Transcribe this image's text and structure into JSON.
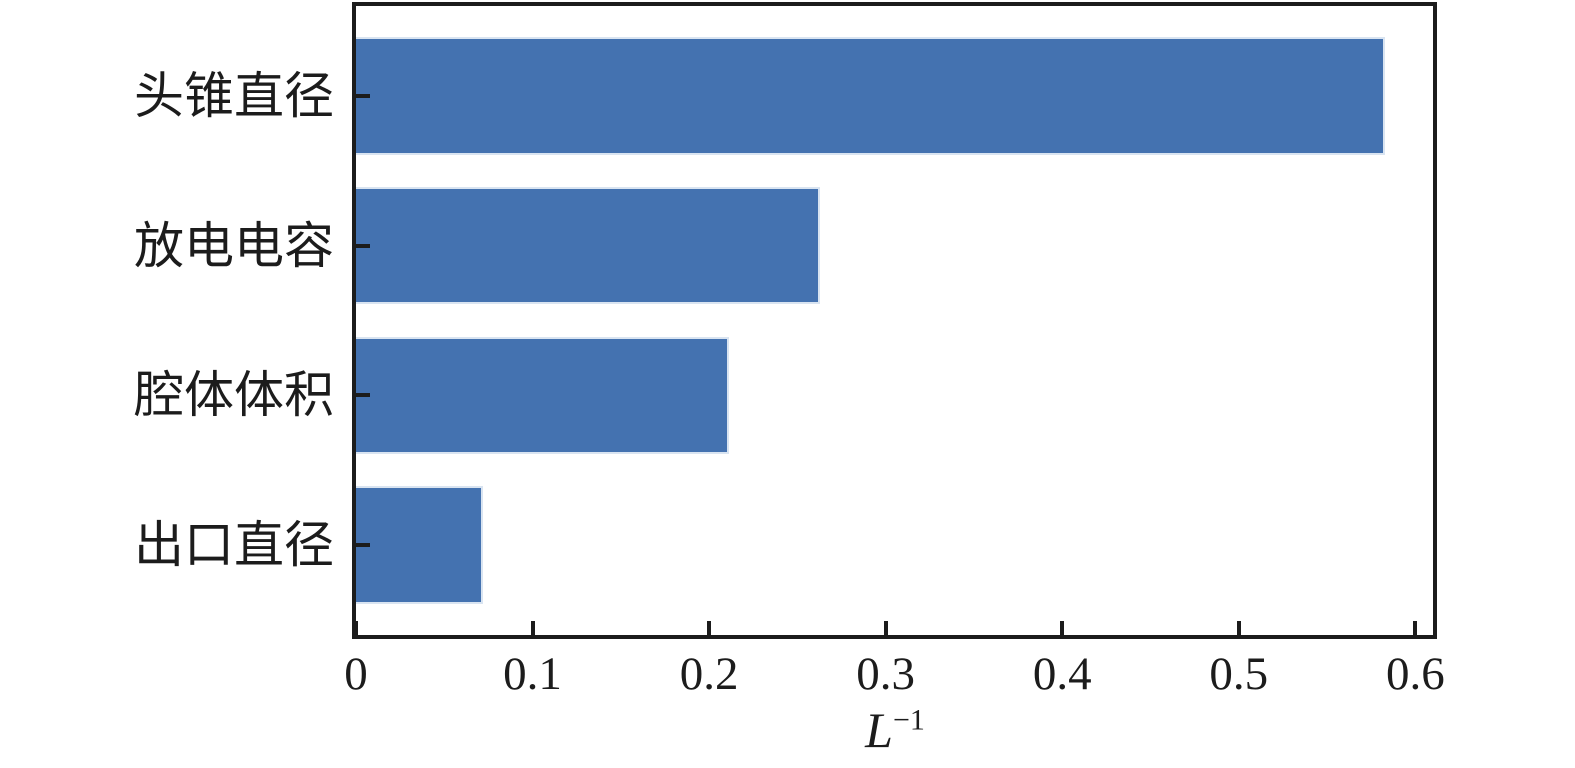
{
  "figure": {
    "background": "#ffffff",
    "text_color": "#1c1c1c",
    "bar_color": "#4472b0",
    "bar_edge_color": "#d9e4f1",
    "axis_color": "#1c1c1c"
  },
  "chart_data": {
    "type": "bar",
    "orientation": "horizontal",
    "title": "",
    "categories": [
      "头锥直径",
      "放电电容",
      "腔体体积",
      "出口直径"
    ],
    "values": [
      0.583,
      0.263,
      0.211,
      0.072
    ],
    "series": [
      {
        "name": "L-1",
        "values": [
          0.583,
          0.263,
          0.211,
          0.072
        ]
      }
    ],
    "xlabel": "L⁻¹",
    "xlabel_base": "L",
    "xlabel_exponent": "−1",
    "ylabel": "",
    "xlim": [
      0,
      0.61
    ],
    "xticks": [
      0,
      0.1,
      0.2,
      0.3,
      0.4,
      0.5,
      0.6
    ],
    "xtick_labels": [
      "0",
      "0.1",
      "0.2",
      "0.3",
      "0.4",
      "0.5",
      "0.6"
    ],
    "grid": false,
    "legend": null,
    "ticks_direction": "in",
    "box": true
  }
}
